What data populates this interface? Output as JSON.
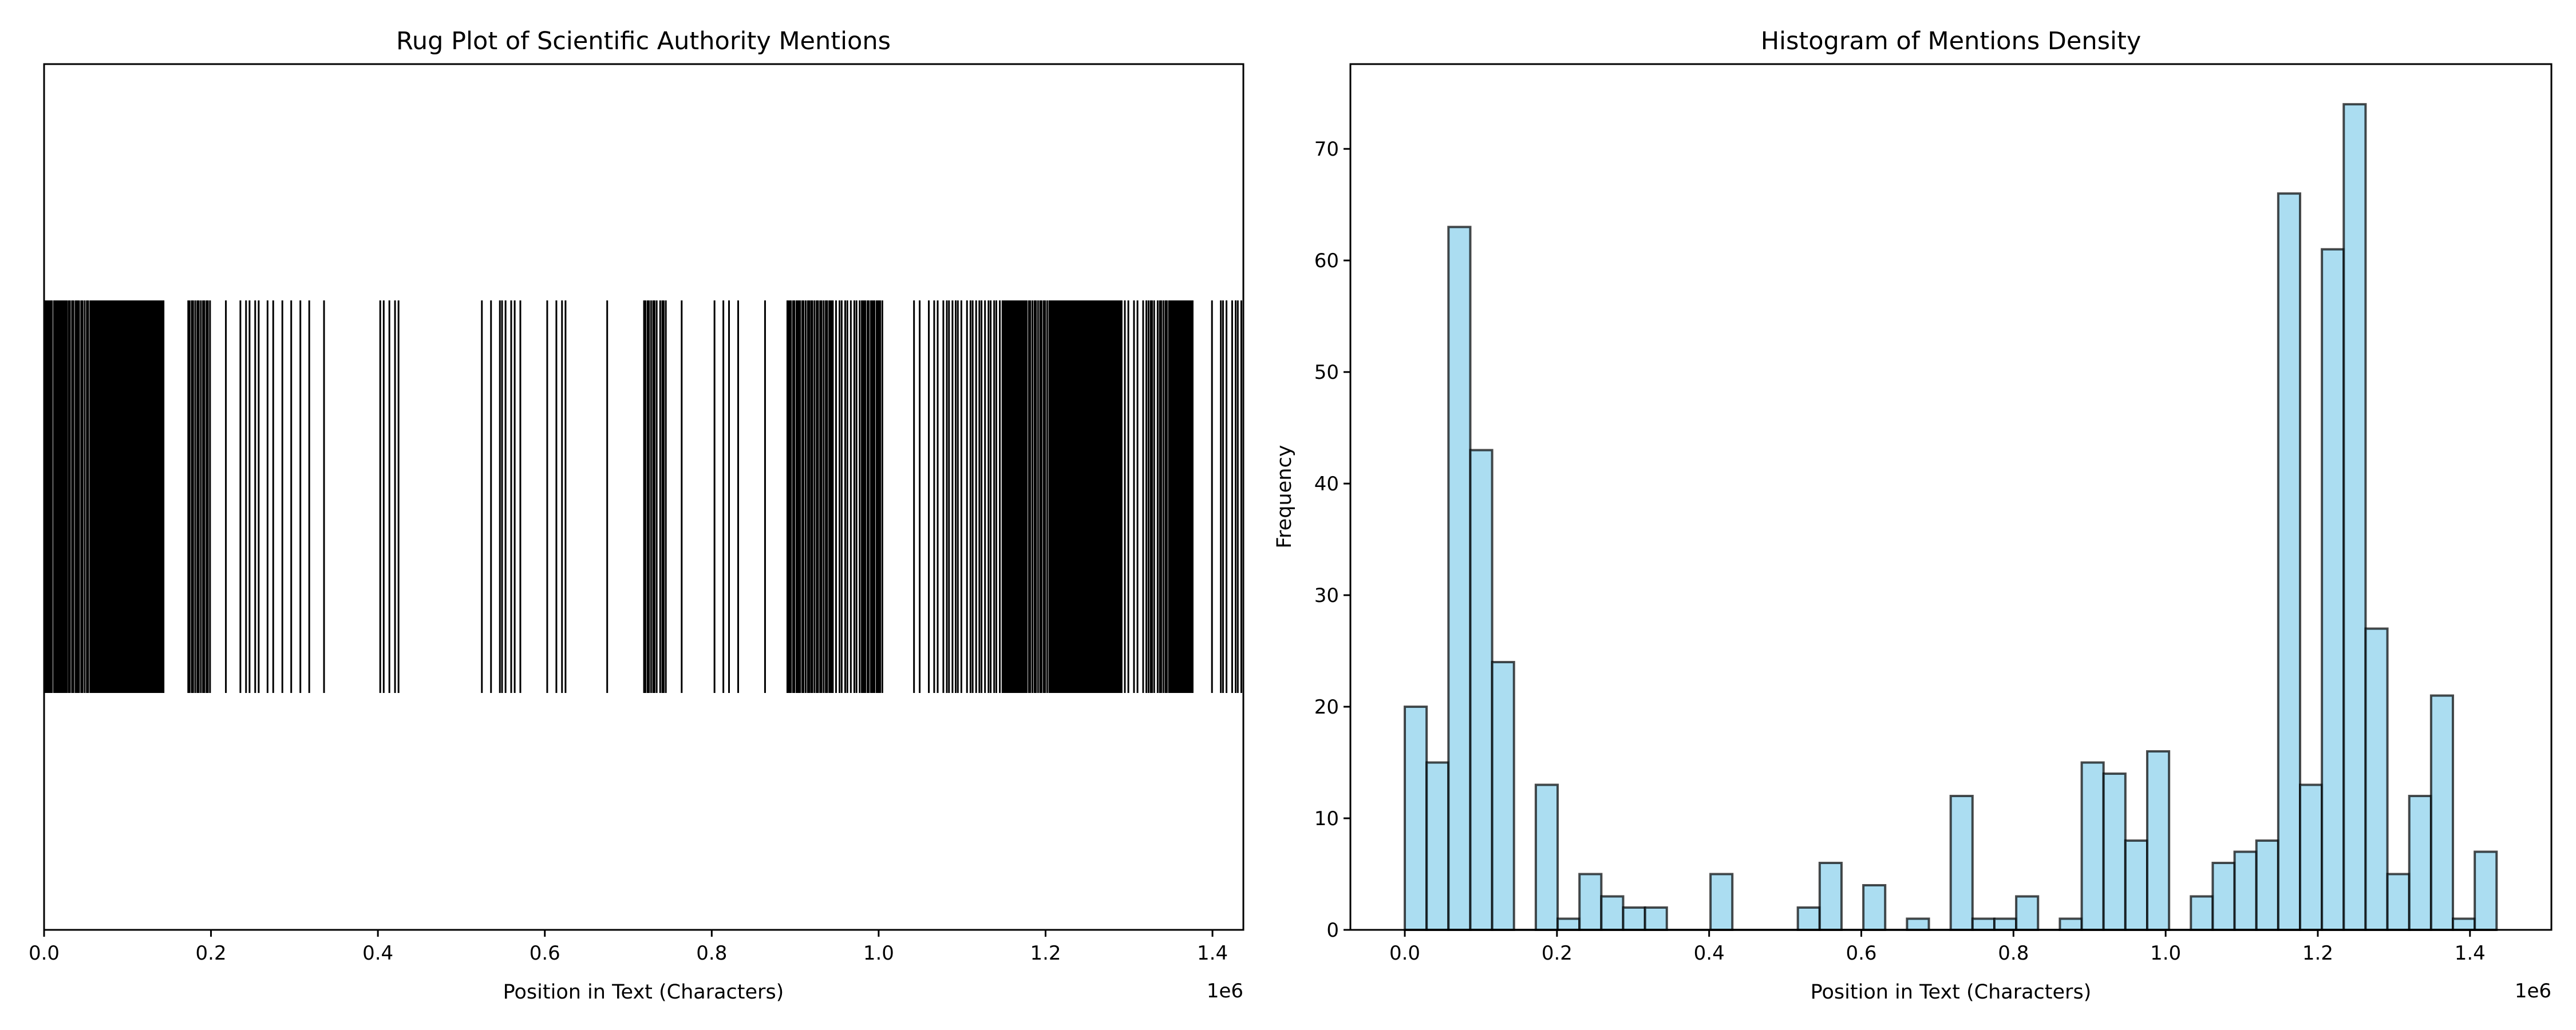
{
  "chart_data": [
    {
      "type": "rug",
      "title": "Rug Plot of Scientific Authority Mentions",
      "xlabel": "Position in Text (Characters)",
      "ylabel": "",
      "x_offset_label": "1e6",
      "xlim": [
        0,
        1.437
      ],
      "x_unit": "1e6 characters",
      "xticks": [
        "0.0",
        "0.2",
        "0.4",
        "0.6",
        "0.8",
        "1.0",
        "1.2",
        "1.4"
      ],
      "yticks": [],
      "positions_source": "same 50-bin distribution as histogram",
      "color": "#000000"
    },
    {
      "type": "bar",
      "title": "Histogram of Mentions Density",
      "xlabel": "Position in Text (Characters)",
      "ylabel": "Frequency",
      "x_offset_label": "1e6",
      "xlim": [
        -0.0715,
        1.507
      ],
      "ylim": [
        0,
        77.6
      ],
      "bin_start": 0.0,
      "bin_width": 0.0287,
      "xticks": [
        "0.0",
        "0.2",
        "0.4",
        "0.6",
        "0.8",
        "1.0",
        "1.2",
        "1.4"
      ],
      "yticks": [
        "0",
        "10",
        "20",
        "30",
        "40",
        "50",
        "60",
        "70"
      ],
      "values": [
        20,
        15,
        63,
        43,
        24,
        0,
        13,
        1,
        5,
        3,
        2,
        2,
        0,
        0,
        5,
        0,
        0,
        0,
        2,
        6,
        0,
        4,
        0,
        1,
        0,
        12,
        1,
        1,
        3,
        0,
        1,
        15,
        14,
        8,
        16,
        0,
        3,
        6,
        7,
        8,
        66,
        13,
        61,
        74,
        27,
        5,
        12,
        21,
        1,
        7
      ],
      "fill": "#87ceeb",
      "edge": "#000000"
    }
  ]
}
